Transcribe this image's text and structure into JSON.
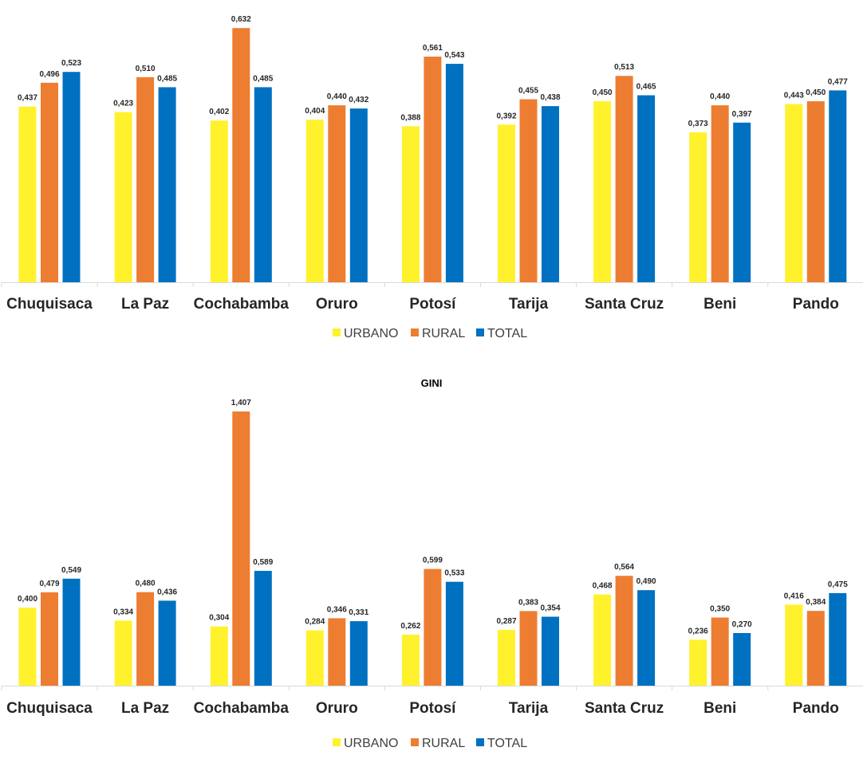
{
  "chart_data": [
    {
      "type": "bar",
      "title": "",
      "categories": [
        "Chuquisaca",
        "La Paz",
        "Cochabamba",
        "Oruro",
        "Potosí",
        "Tarija",
        "Santa Cruz",
        "Beni",
        "Pando"
      ],
      "series": [
        {
          "name": "URBANO",
          "color": "#FFF22D",
          "values": [
            0.437,
            0.423,
            0.402,
            0.404,
            0.388,
            0.392,
            0.45,
            0.373,
            0.443
          ],
          "labels": [
            "0,437",
            "0,423",
            "0,402",
            "0,404",
            "0,388",
            "0,392",
            "0,450",
            "0,373",
            "0,443"
          ]
        },
        {
          "name": "RURAL",
          "color": "#ED7D31",
          "values": [
            0.496,
            0.51,
            0.632,
            0.44,
            0.561,
            0.455,
            0.513,
            0.44,
            0.45
          ],
          "labels": [
            "0,496",
            "0,510",
            "0,632",
            "0,440",
            "0,561",
            "0,455",
            "0,513",
            "0,440",
            "0,450"
          ]
        },
        {
          "name": "TOTAL",
          "color": "#0070C0",
          "values": [
            0.523,
            0.485,
            0.485,
            0.432,
            0.543,
            0.438,
            0.465,
            0.397,
            0.477
          ],
          "labels": [
            "0,523",
            "0,485",
            "0,485",
            "0,432",
            "0,543",
            "0,438",
            "0,465",
            "0,397",
            "0,477"
          ]
        }
      ],
      "ylim": [
        0,
        0.7
      ],
      "grid": false,
      "legend": "bottom"
    },
    {
      "type": "bar",
      "title": "GINI",
      "categories": [
        "Chuquisaca",
        "La Paz",
        "Cochabamba",
        "Oruro",
        "Potosí",
        "Tarija",
        "Santa Cruz",
        "Beni",
        "Pando"
      ],
      "series": [
        {
          "name": "URBANO",
          "color": "#FFF22D",
          "values": [
            0.4,
            0.334,
            0.304,
            0.284,
            0.262,
            0.287,
            0.468,
            0.236,
            0.416
          ],
          "labels": [
            "0,400",
            "0,334",
            "0,304",
            "0,284",
            "0,262",
            "0,287",
            "0,468",
            "0,236",
            "0,416"
          ]
        },
        {
          "name": "RURAL",
          "color": "#ED7D31",
          "values": [
            0.479,
            0.48,
            1.407,
            0.346,
            0.599,
            0.383,
            0.564,
            0.35,
            0.384
          ],
          "labels": [
            "0,479",
            "0,480",
            "1,407",
            "0,346",
            "0,599",
            "0,383",
            "0,564",
            "0,350",
            "0,384"
          ]
        },
        {
          "name": "TOTAL",
          "color": "#0070C0",
          "values": [
            0.549,
            0.436,
            0.589,
            0.331,
            0.533,
            0.354,
            0.49,
            0.27,
            0.475
          ],
          "labels": [
            "0,549",
            "0,436",
            "0,589",
            "0,331",
            "0,533",
            "0,354",
            "0,490",
            "0,270",
            "0,475"
          ]
        }
      ],
      "ylim": [
        0,
        1.5
      ],
      "grid": false,
      "legend": "bottom"
    }
  ]
}
